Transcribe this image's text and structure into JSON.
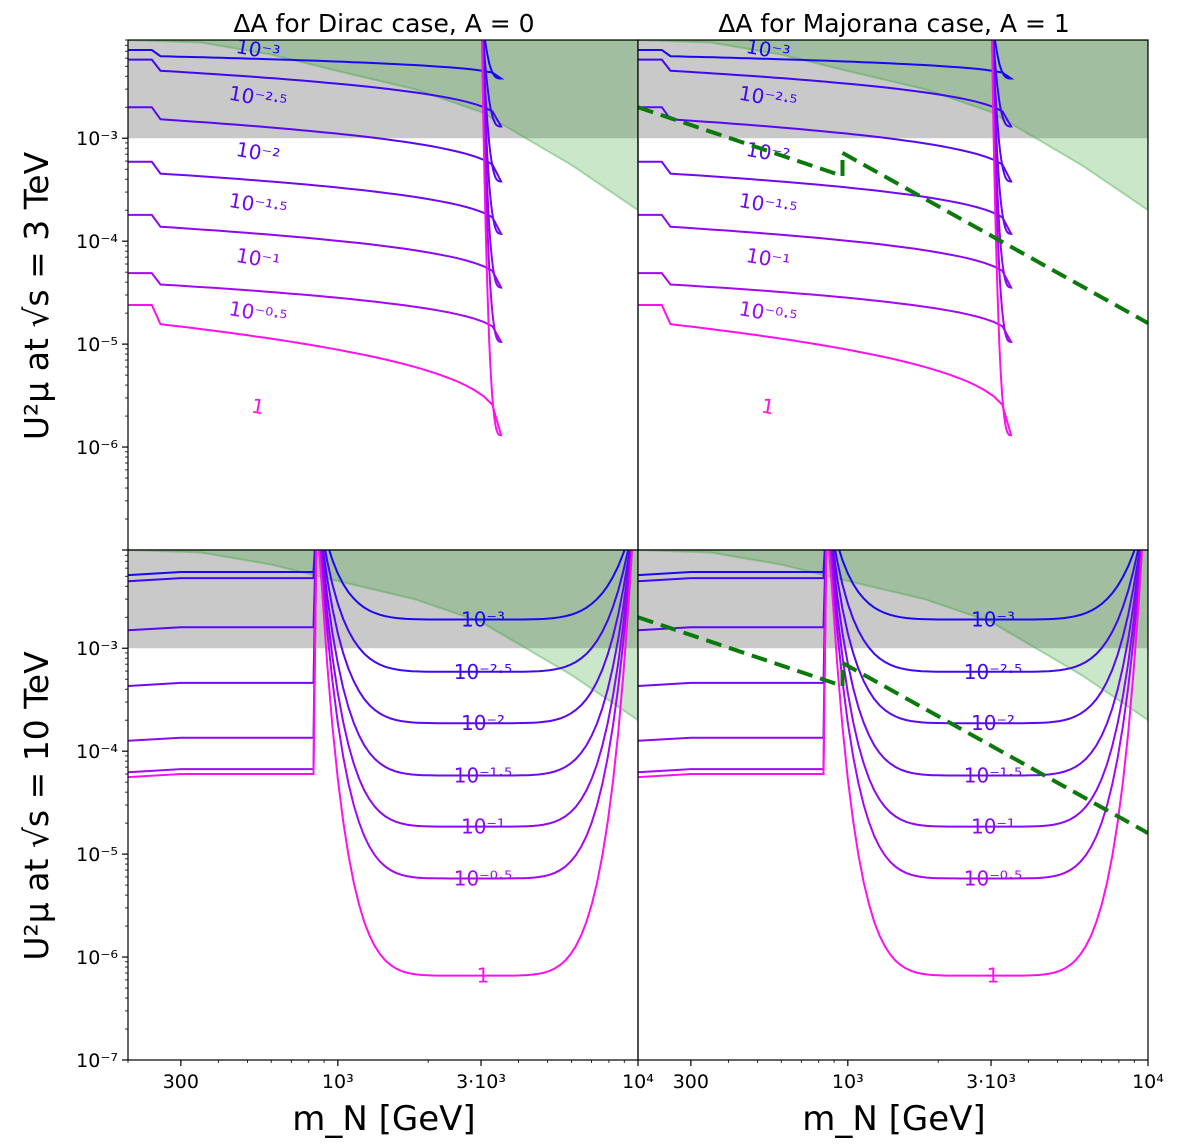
{
  "chart_data": {
    "type": "contour",
    "panel_titles": [
      "ΔA for Dirac case, A = 0",
      "ΔA for Majorana case, A = 1"
    ],
    "row_labels": [
      "U²μ at √s = 3 TeV",
      "U²μ at √s = 10 TeV"
    ],
    "xlabel": "m_N [GeV]",
    "x_axis": {
      "scale": "log",
      "range": [
        200,
        10000
      ],
      "ticks": [
        300,
        1000,
        3000,
        10000
      ],
      "tick_labels": [
        "300",
        "10³",
        "3·10³",
        "10⁴"
      ]
    },
    "y_axis": {
      "scale": "log",
      "range": [
        1e-07,
        0.009
      ],
      "ticks": [
        1e-07,
        1e-06,
        1e-05,
        0.0001,
        0.001
      ],
      "tick_labels": [
        "10⁻⁷",
        "10⁻⁶",
        "10⁻⁵",
        "10⁻⁴",
        "10⁻³"
      ]
    },
    "contour_levels": [
      "10⁻³",
      "10⁻²·⁵",
      "10⁻²",
      "10⁻¹·⁵",
      "10⁻¹",
      "10⁻⁰·⁵",
      "1"
    ],
    "contour_colors": [
      "#1a08f2",
      "#3f08f2",
      "#5a08f2",
      "#7308f2",
      "#8e08f2",
      "#a508f2",
      "#ff10ee"
    ],
    "contour_minima": {
      "sqrt_s_3TeV": [
        0.0038,
        0.0013,
        0.00038,
        0.000118,
        3.55e-05,
        1.05e-05,
        1.3e-06
      ],
      "sqrt_s_10TeV": [
        0.0019,
        0.00059,
        0.000187,
        5.8e-05,
        1.85e-05,
        5.8e-06,
        6.6e-07
      ]
    },
    "contour_plateau_low_mass": {
      "sqrt_s_3TeV": [
        0.0072,
        0.0058,
        0.002,
        0.00059,
        0.00018,
        4.9e-05,
        2.4e-05
      ],
      "sqrt_s_10TeV": [
        0.0055,
        0.0048,
        0.0016,
        0.00046,
        0.000135,
        6.7e-05,
        6e-05
      ]
    },
    "contour_min_mass_GeV": [
      3500,
      3500
    ],
    "threshold_mass_GeV": {
      "sqrt_s_3TeV": 3000,
      "sqrt_s_10TeV": 850
    },
    "gray_excluded_region_above": 0.001,
    "green_excluded_boundary": {
      "mN": [
        200,
        350,
        600,
        1000,
        1800,
        3000,
        6000,
        10000
      ],
      "U2": [
        0.009,
        0.0085,
        0.0065,
        0.0045,
        0.003,
        0.0018,
        0.00055,
        0.0002
      ]
    },
    "green_dashed_line_majorana": {
      "segment_1": {
        "mN": [
          200,
          960
        ],
        "U2": [
          0.002,
          0.00043
        ]
      },
      "segment_2": {
        "mN": [
          960,
          10000
        ],
        "U2": [
          0.00072,
          1.6e-05
        ]
      }
    }
  }
}
